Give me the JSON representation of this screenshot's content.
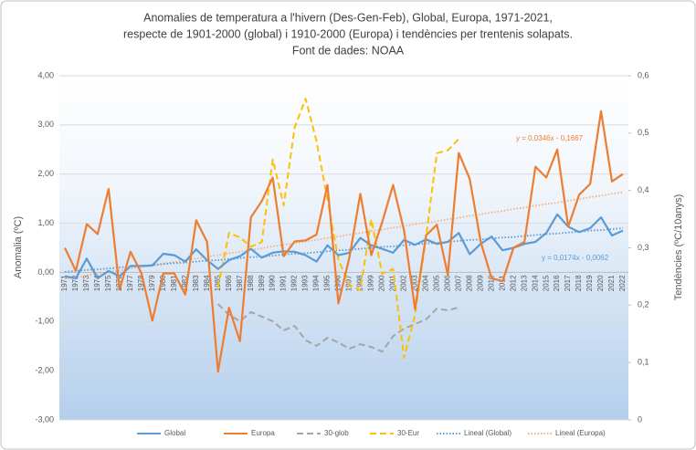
{
  "chart_data": {
    "type": "line",
    "title": [
      "Anomalies de temperatura a l'hivern (Des-Gen-Feb), Global, Europa, 1971-2021,",
      "respecte de 1901-2000 (global) i 1910-2000 (Europa) i tendències per trentenis solapats.",
      "Font de dades: NOAA"
    ],
    "y_label": "Anomalia (ºC)",
    "y2_label": "Tendències (ºC/10anys)",
    "categories": [
      "1971",
      "1972",
      "1973",
      "1974",
      "1975",
      "1976",
      "1977",
      "1978",
      "1979",
      "1980",
      "1981",
      "1982",
      "1983",
      "1984",
      "1985",
      "1986",
      "1987",
      "1988",
      "1989",
      "1990",
      "1991",
      "1992",
      "1993",
      "1994",
      "1995",
      "1996",
      "1997",
      "1998",
      "1999",
      "2000",
      "2001",
      "2002",
      "2003",
      "2004",
      "2005",
      "2006",
      "2007",
      "2008",
      "2009",
      "2010",
      "2011",
      "2012",
      "2013",
      "2014",
      "2015",
      "2016",
      "2017",
      "2018",
      "2019",
      "2020",
      "2021",
      "2022"
    ],
    "ylim": [
      -3,
      4
    ],
    "yticks": [
      {
        "value": -3,
        "label": "-3,00"
      },
      {
        "value": -2,
        "label": "-2,00"
      },
      {
        "value": -1,
        "label": "-1,00"
      },
      {
        "value": 0,
        "label": "0,00"
      },
      {
        "value": 1,
        "label": "1,00"
      },
      {
        "value": 2,
        "label": "2,00"
      },
      {
        "value": 3,
        "label": "3,00"
      },
      {
        "value": 4,
        "label": "4,00"
      }
    ],
    "y2lim": [
      0,
      0.6
    ],
    "y2ticks": [
      0,
      {
        "value": 0.1,
        "label": "0,1"
      },
      {
        "value": 0.2,
        "label": "0,2"
      },
      {
        "value": 0.3,
        "label": "0,3"
      },
      {
        "value": 0.4,
        "label": "0,4"
      },
      {
        "value": 0.5,
        "label": "0,5"
      },
      {
        "value": 0.6,
        "label": "0,6"
      }
    ],
    "grid": true,
    "legend": "bottom",
    "series": [
      {
        "name": "Global",
        "color": "#5b9bd5",
        "dash": "solid",
        "values": [
          -0.08,
          -0.12,
          0.28,
          -0.12,
          0.03,
          -0.08,
          0.13,
          0.13,
          0.14,
          0.38,
          0.35,
          0.22,
          0.47,
          0.25,
          0.07,
          0.25,
          0.33,
          0.48,
          0.3,
          0.4,
          0.43,
          0.42,
          0.35,
          0.22,
          0.55,
          0.35,
          0.4,
          0.7,
          0.55,
          0.48,
          0.4,
          0.66,
          0.56,
          0.67,
          0.58,
          0.62,
          0.8,
          0.37,
          0.58,
          0.73,
          0.45,
          0.5,
          0.58,
          0.62,
          0.8,
          1.18,
          0.93,
          0.82,
          0.9,
          1.12,
          0.75,
          0.85
        ]
      },
      {
        "name": "Europa",
        "color": "#ed7d31",
        "dash": "solid",
        "values": [
          0.5,
          0.03,
          0.98,
          0.78,
          1.7,
          -0.35,
          0.42,
          -0.02,
          -0.98,
          -0.02,
          -0.02,
          -0.45,
          1.06,
          0.62,
          -2.02,
          -0.72,
          -1.4,
          1.12,
          1.45,
          1.93,
          0.33,
          0.63,
          0.65,
          0.77,
          1.78,
          -0.63,
          0.3,
          1.6,
          0.35,
          1.02,
          1.78,
          0.85,
          -0.75,
          0.75,
          0.97,
          -0.05,
          2.43,
          1.9,
          0.62,
          -0.12,
          -0.18,
          0.5,
          0.62,
          2.15,
          1.93,
          2.5,
          0.93,
          1.58,
          1.8,
          3.28,
          1.85,
          2.0
        ]
      },
      {
        "name": "30-glob",
        "color": "#a5a5a5",
        "dash": "dashed",
        "axis": "y2",
        "values": [
          null,
          null,
          null,
          null,
          null,
          null,
          null,
          null,
          null,
          null,
          null,
          null,
          null,
          null,
          0.202,
          0.183,
          0.172,
          0.188,
          0.18,
          0.172,
          0.156,
          0.164,
          0.139,
          0.129,
          0.143,
          0.135,
          0.124,
          0.132,
          0.127,
          0.119,
          0.146,
          0.159,
          0.167,
          0.175,
          0.194,
          0.191,
          0.196,
          null,
          null,
          null,
          null,
          null,
          null,
          null,
          null,
          null,
          null,
          null,
          null,
          null,
          null,
          null
        ]
      },
      {
        "name": "30-Eur",
        "color": "#ffc000",
        "dash": "dashed",
        "axis": "y2",
        "values": [
          null,
          null,
          null,
          null,
          null,
          null,
          null,
          null,
          null,
          null,
          null,
          null,
          null,
          null,
          0.231,
          0.326,
          0.318,
          0.302,
          0.31,
          0.454,
          0.374,
          0.51,
          0.56,
          0.486,
          0.385,
          0.279,
          0.236,
          0.226,
          0.35,
          0.255,
          0.263,
          0.108,
          0.183,
          0.318,
          0.465,
          0.47,
          0.49,
          null,
          null,
          null,
          null,
          null,
          null,
          null,
          null,
          null,
          null,
          null,
          null,
          null,
          null,
          null
        ]
      },
      {
        "name": "Lineal (Global)",
        "color": "#5b9bd5",
        "dash": "dotted",
        "values": [
          0.01,
          0.03,
          0.05,
          0.06,
          0.08,
          0.1,
          0.12,
          0.13,
          0.15,
          0.17,
          0.19,
          0.2,
          0.22,
          0.24,
          0.25,
          0.27,
          0.29,
          0.31,
          0.32,
          0.34,
          0.36,
          0.38,
          0.39,
          0.41,
          0.43,
          0.45,
          0.46,
          0.48,
          0.5,
          0.52,
          0.53,
          0.55,
          0.57,
          0.59,
          0.6,
          0.62,
          0.64,
          0.66,
          0.67,
          0.69,
          0.71,
          0.72,
          0.74,
          0.76,
          0.78,
          0.79,
          0.81,
          0.83,
          0.85,
          0.86,
          0.88,
          0.9
        ]
      },
      {
        "name": "Lineal (Europa)",
        "color": "#f4b183",
        "dash": "dotted",
        "values": [
          -0.13,
          -0.1,
          -0.06,
          -0.03,
          0.01,
          0.04,
          0.08,
          0.11,
          0.14,
          0.18,
          0.21,
          0.25,
          0.28,
          0.32,
          0.35,
          0.39,
          0.42,
          0.46,
          0.49,
          0.53,
          0.56,
          0.59,
          0.63,
          0.66,
          0.7,
          0.73,
          0.77,
          0.8,
          0.84,
          0.87,
          0.91,
          0.94,
          0.98,
          1.01,
          1.04,
          1.08,
          1.11,
          1.15,
          1.18,
          1.22,
          1.25,
          1.29,
          1.32,
          1.36,
          1.39,
          1.42,
          1.46,
          1.49,
          1.53,
          1.56,
          1.6,
          1.63
        ]
      }
    ],
    "annotations": [
      {
        "text": "y = 0,0346x - 0,1667",
        "color": "#ed7d31"
      },
      {
        "text": "y = 0,0174x - 0,0062",
        "color": "#5b9bd5"
      }
    ]
  }
}
